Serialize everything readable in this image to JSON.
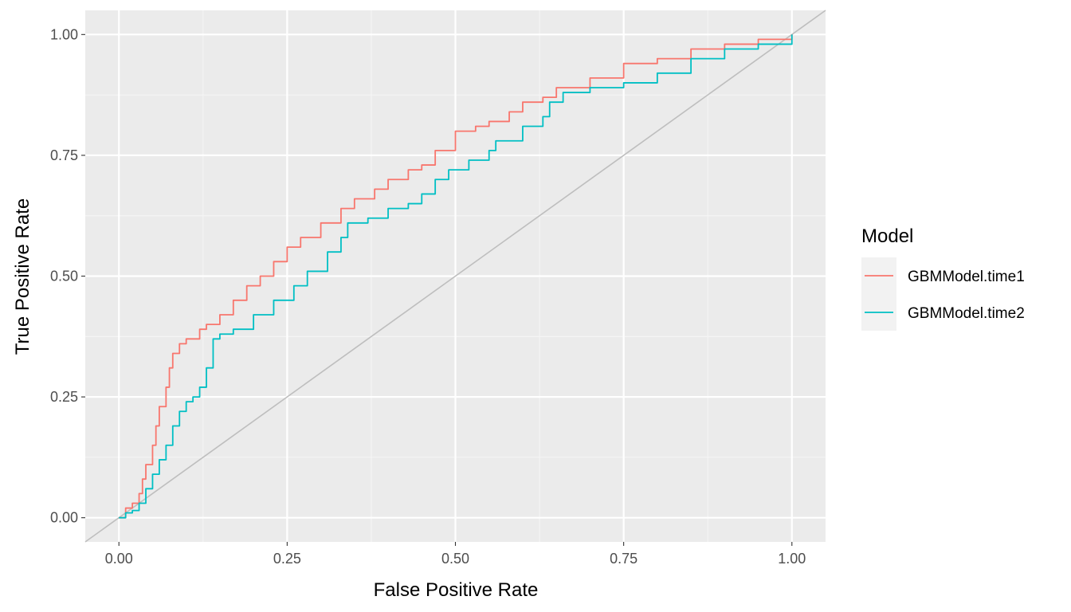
{
  "colors": {
    "panel_background": "#EBEBEB",
    "grid_major": "#FFFFFF",
    "grid_minor": "#F5F5F5",
    "reference_line": "#BEBEBE",
    "axis_text": "#4D4D4D",
    "legend_key_background": "#F2F2F2"
  },
  "chart_data": {
    "type": "line",
    "title": "",
    "xlabel": "False Positive Rate",
    "ylabel": "True Positive Rate",
    "xlim": [
      -0.05,
      1.05
    ],
    "ylim": [
      -0.05,
      1.05
    ],
    "x_ticks": [
      0,
      0.25,
      0.5,
      0.75,
      1
    ],
    "y_ticks": [
      0,
      0.25,
      0.5,
      0.75,
      1
    ],
    "x_tick_labels": [
      "0.00",
      "0.25",
      "0.50",
      "0.75",
      "1.00"
    ],
    "y_tick_labels": [
      "0.00",
      "0.25",
      "0.50",
      "0.75",
      "1.00"
    ],
    "grid": true,
    "reference_line": {
      "intercept": 0,
      "slope": 1
    },
    "legend": {
      "title": "Model",
      "position": "right"
    },
    "series": [
      {
        "name": "GBMModel.time1",
        "color": "#F8766D",
        "points": [
          [
            0,
            0
          ],
          [
            0.01,
            0.02
          ],
          [
            0.02,
            0.03
          ],
          [
            0.03,
            0.05
          ],
          [
            0.035,
            0.08
          ],
          [
            0.04,
            0.11
          ],
          [
            0.05,
            0.15
          ],
          [
            0.055,
            0.19
          ],
          [
            0.06,
            0.23
          ],
          [
            0.07,
            0.27
          ],
          [
            0.075,
            0.31
          ],
          [
            0.08,
            0.34
          ],
          [
            0.09,
            0.36
          ],
          [
            0.1,
            0.37
          ],
          [
            0.12,
            0.39
          ],
          [
            0.13,
            0.4
          ],
          [
            0.15,
            0.42
          ],
          [
            0.17,
            0.45
          ],
          [
            0.19,
            0.48
          ],
          [
            0.21,
            0.5
          ],
          [
            0.23,
            0.53
          ],
          [
            0.25,
            0.56
          ],
          [
            0.27,
            0.58
          ],
          [
            0.3,
            0.61
          ],
          [
            0.33,
            0.64
          ],
          [
            0.35,
            0.66
          ],
          [
            0.38,
            0.68
          ],
          [
            0.4,
            0.7
          ],
          [
            0.43,
            0.72
          ],
          [
            0.45,
            0.73
          ],
          [
            0.47,
            0.76
          ],
          [
            0.5,
            0.8
          ],
          [
            0.53,
            0.81
          ],
          [
            0.55,
            0.82
          ],
          [
            0.58,
            0.84
          ],
          [
            0.6,
            0.86
          ],
          [
            0.63,
            0.87
          ],
          [
            0.65,
            0.89
          ],
          [
            0.7,
            0.91
          ],
          [
            0.75,
            0.94
          ],
          [
            0.8,
            0.95
          ],
          [
            0.85,
            0.97
          ],
          [
            0.9,
            0.98
          ],
          [
            0.95,
            0.99
          ],
          [
            1,
            1
          ]
        ]
      },
      {
        "name": "GBMModel.time2",
        "color": "#00BFC4",
        "points": [
          [
            0,
            0
          ],
          [
            0.01,
            0.01
          ],
          [
            0.02,
            0.015
          ],
          [
            0.03,
            0.03
          ],
          [
            0.04,
            0.06
          ],
          [
            0.05,
            0.09
          ],
          [
            0.06,
            0.12
          ],
          [
            0.07,
            0.15
          ],
          [
            0.08,
            0.19
          ],
          [
            0.09,
            0.22
          ],
          [
            0.1,
            0.24
          ],
          [
            0.11,
            0.25
          ],
          [
            0.12,
            0.27
          ],
          [
            0.13,
            0.31
          ],
          [
            0.14,
            0.37
          ],
          [
            0.15,
            0.38
          ],
          [
            0.17,
            0.39
          ],
          [
            0.2,
            0.42
          ],
          [
            0.23,
            0.45
          ],
          [
            0.26,
            0.48
          ],
          [
            0.28,
            0.51
          ],
          [
            0.31,
            0.55
          ],
          [
            0.33,
            0.58
          ],
          [
            0.34,
            0.61
          ],
          [
            0.37,
            0.62
          ],
          [
            0.4,
            0.64
          ],
          [
            0.43,
            0.65
          ],
          [
            0.45,
            0.67
          ],
          [
            0.47,
            0.7
          ],
          [
            0.49,
            0.72
          ],
          [
            0.52,
            0.74
          ],
          [
            0.55,
            0.76
          ],
          [
            0.56,
            0.78
          ],
          [
            0.6,
            0.81
          ],
          [
            0.63,
            0.83
          ],
          [
            0.64,
            0.86
          ],
          [
            0.66,
            0.88
          ],
          [
            0.7,
            0.89
          ],
          [
            0.75,
            0.9
          ],
          [
            0.8,
            0.92
          ],
          [
            0.85,
            0.95
          ],
          [
            0.9,
            0.97
          ],
          [
            0.95,
            0.98
          ],
          [
            1,
            1
          ]
        ]
      }
    ]
  }
}
